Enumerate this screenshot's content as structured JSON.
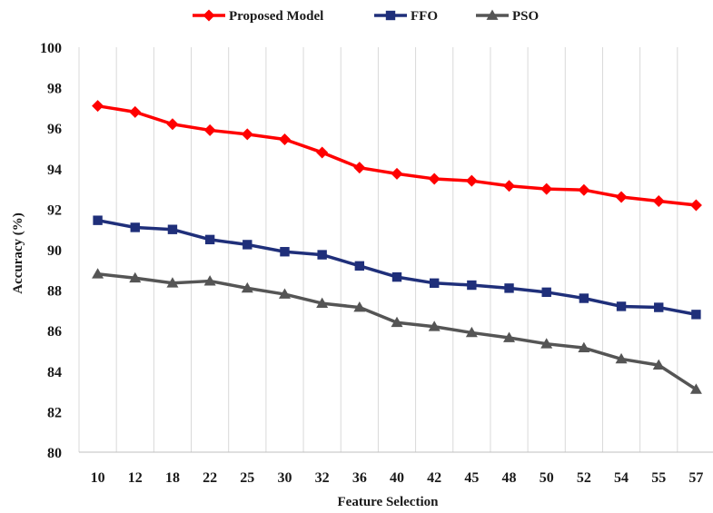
{
  "chart_data": {
    "type": "line",
    "title": "",
    "xlabel": "Feature Selection",
    "ylabel": "Accuracy (%)",
    "categories": [
      "10",
      "12",
      "18",
      "22",
      "25",
      "30",
      "32",
      "36",
      "40",
      "42",
      "45",
      "48",
      "50",
      "52",
      "54",
      "55",
      "57"
    ],
    "ylim": [
      80,
      100
    ],
    "yticks": [
      "80",
      "82",
      "84",
      "86",
      "88",
      "90",
      "92",
      "94",
      "96",
      "98",
      "100"
    ],
    "grid": "vertical",
    "legend_position": "top",
    "series": [
      {
        "name": "Proposed Model",
        "color": "#ff0000",
        "marker": "diamond",
        "values": [
          97.1,
          96.8,
          96.2,
          95.9,
          95.7,
          95.45,
          94.8,
          94.05,
          93.75,
          93.5,
          93.4,
          93.15,
          93.0,
          92.95,
          92.6,
          92.4,
          92.2
        ]
      },
      {
        "name": "FFO",
        "color": "#1f2f7a",
        "marker": "square",
        "values": [
          91.45,
          91.1,
          91.0,
          90.5,
          90.25,
          89.9,
          89.75,
          89.2,
          88.65,
          88.35,
          88.25,
          88.1,
          87.9,
          87.6,
          87.2,
          87.15,
          86.8
        ]
      },
      {
        "name": "PSO",
        "color": "#555555",
        "marker": "triangle",
        "values": [
          88.8,
          88.6,
          88.35,
          88.45,
          88.1,
          87.8,
          87.35,
          87.15,
          86.4,
          86.2,
          85.9,
          85.65,
          85.35,
          85.15,
          84.6,
          84.3,
          83.1
        ]
      }
    ]
  }
}
